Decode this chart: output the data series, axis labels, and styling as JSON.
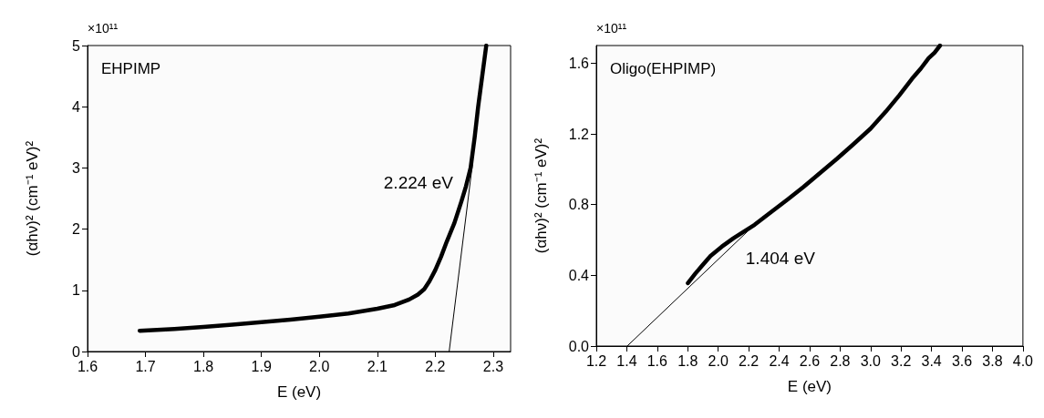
{
  "chart_data": [
    {
      "type": "line",
      "title": "EHPIMP",
      "xlabel": "E (eV)",
      "ylabel": "(αhν)² (cm⁻¹ eV)²",
      "annotations": [
        "×10¹¹",
        "2.224 eV"
      ],
      "series": [
        {
          "color": "#000000",
          "x": [
            1.69,
            1.75,
            1.8,
            1.85,
            1.9,
            1.95,
            2.0,
            2.05,
            2.1,
            2.13,
            2.155,
            2.17,
            2.181,
            2.19,
            2.2,
            2.21,
            2.22,
            2.233,
            2.245,
            2.253,
            2.261,
            2.268,
            2.274,
            2.281,
            2.288
          ],
          "values": [
            0.34,
            0.37,
            0.4,
            0.44,
            0.48,
            0.52,
            0.57,
            0.62,
            0.7,
            0.76,
            0.85,
            0.93,
            1.02,
            1.15,
            1.33,
            1.55,
            1.8,
            2.1,
            2.45,
            2.7,
            3.0,
            3.5,
            4.0,
            4.5,
            5.0
          ]
        },
        {
          "type": "line",
          "color": "#000000",
          "x": [
            2.264,
            2.224
          ],
          "values": [
            3.05,
            0
          ]
        }
      ],
      "xlim": [
        1.6,
        2.33
      ],
      "xticks": [
        1.6,
        1.7,
        1.8,
        1.9,
        {
          "value": 2.0,
          "label": "2.0"
        },
        2.1,
        2.2,
        2.3
      ],
      "ylim": [
        0,
        5
      ],
      "yticks": [
        0,
        1,
        2,
        3,
        4,
        5
      ],
      "grid": false,
      "marker": "none",
      "line_style": "solid"
    },
    {
      "type": "line",
      "title": "Oligo(EHPIMP)",
      "xlabel": "E (eV)",
      "ylabel": "(αhν)² (cm⁻¹ eV)²",
      "annotations": [
        "×10¹¹",
        "1.404 eV"
      ],
      "series": [
        {
          "color": "#000000",
          "x": [
            1.801,
            1.85,
            1.894,
            1.95,
            2.023,
            2.1,
            2.239,
            2.35,
            2.454,
            2.56,
            2.67,
            2.78,
            2.885,
            3.0,
            3.1,
            3.19,
            3.273,
            3.33,
            3.381,
            3.42,
            3.456
          ],
          "values": [
            0.356,
            0.41,
            0.455,
            0.51,
            0.562,
            0.61,
            0.686,
            0.76,
            0.828,
            0.9,
            0.98,
            1.06,
            1.14,
            1.23,
            1.326,
            1.42,
            1.513,
            1.57,
            1.628,
            1.66,
            1.7
          ]
        },
        {
          "type": "line",
          "color": "#000000",
          "x": [
            2.293,
            1.403
          ],
          "values": [
            0.731,
            0
          ]
        }
      ],
      "xlim": [
        1.2,
        4.0
      ],
      "xticks": [
        1.2,
        1.4,
        1.6,
        1.8,
        {
          "value": 2.0,
          "label": "2.0"
        },
        2.2,
        2.4,
        2.6,
        2.8,
        {
          "value": 3.0,
          "label": "3.0"
        },
        3.2,
        3.4,
        3.6,
        3.8,
        {
          "value": 4.0,
          "label": "4.0"
        }
      ],
      "ylim": [
        0,
        1.7
      ],
      "yticks": [
        {
          "value": 0,
          "label": "0.0"
        },
        0.4,
        0.8,
        1.2,
        1.6
      ],
      "grid": false,
      "marker": "none",
      "line_style": "solid"
    }
  ]
}
